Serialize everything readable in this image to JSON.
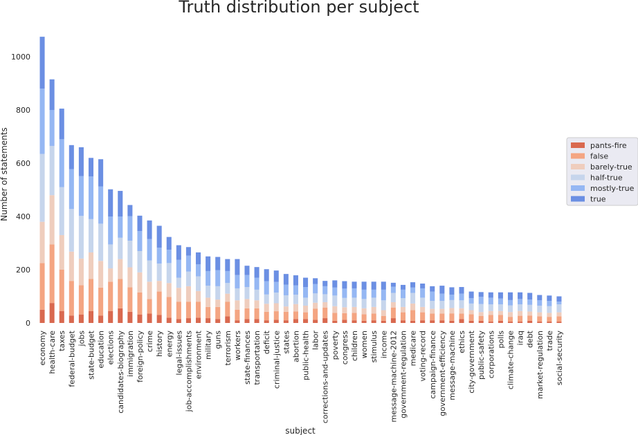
{
  "chart_data": {
    "type": "bar",
    "stacked": true,
    "title": "Truth distribution per subject",
    "xlabel": "subject",
    "ylabel": "Number of statements",
    "ylim": [
      0,
      1100
    ],
    "yticks": [
      0,
      200,
      400,
      600,
      800,
      1000
    ],
    "grid": false,
    "legend_position": "right",
    "categories": [
      "economy",
      "health-care",
      "taxes",
      "federal-budget",
      "jobs",
      "state-budget",
      "education",
      "elections",
      "candidates-biography",
      "immigration",
      "foreign-policy",
      "crime",
      "history",
      "energy",
      "legal-issues",
      "job-accomplishments",
      "environment",
      "military",
      "guns",
      "terrorism",
      "workers",
      "state-finances",
      "transportation",
      "deficit",
      "criminal-justice",
      "states",
      "abortion",
      "public-health",
      "labor",
      "corrections-and-updates",
      "poverty",
      "congress",
      "children",
      "women",
      "stimulus",
      "income",
      "message-machine-2012",
      "government-regulation",
      "medicare",
      "voting-record",
      "campaign-finance",
      "government-efficiency",
      "message-machine",
      "ethics",
      "city-government",
      "public-safety",
      "corporations",
      "polls",
      "climate-change",
      "iraq",
      "debt",
      "market-regulation",
      "trade",
      "social-security"
    ],
    "series": [
      {
        "name": "pants-fire",
        "color": "#d9694f",
        "values": [
          50,
          75,
          45,
          28,
          32,
          45,
          28,
          45,
          55,
          42,
          32,
          35,
          30,
          20,
          15,
          18,
          20,
          18,
          15,
          25,
          10,
          15,
          15,
          10,
          12,
          10,
          15,
          15,
          12,
          18,
          8,
          12,
          10,
          8,
          10,
          8,
          18,
          10,
          8,
          10,
          10,
          10,
          8,
          15,
          8,
          8,
          5,
          8,
          5,
          5,
          8,
          5,
          5,
          5
        ]
      },
      {
        "name": "false",
        "color": "#f4a582",
        "values": [
          175,
          220,
          155,
          130,
          110,
          120,
          105,
          110,
          110,
          92,
          83,
          55,
          88,
          78,
          65,
          62,
          60,
          42,
          45,
          55,
          40,
          40,
          40,
          32,
          32,
          32,
          28,
          25,
          42,
          40,
          30,
          25,
          28,
          25,
          25,
          18,
          40,
          30,
          40,
          30,
          25,
          25,
          28,
          20,
          25,
          18,
          25,
          22,
          18,
          22,
          20,
          20,
          18,
          20
        ]
      },
      {
        "name": "barely-true",
        "color": "#efcdbd",
        "values": [
          155,
          185,
          130,
          110,
          100,
          100,
          100,
          50,
          75,
          75,
          75,
          65,
          40,
          52,
          52,
          58,
          40,
          35,
          28,
          30,
          35,
          35,
          30,
          30,
          30,
          20,
          28,
          25,
          22,
          20,
          25,
          22,
          22,
          22,
          25,
          22,
          20,
          20,
          25,
          20,
          18,
          18,
          20,
          20,
          15,
          15,
          15,
          15,
          18,
          18,
          15,
          15,
          15,
          15
        ]
      },
      {
        "name": "half-true",
        "color": "#c6d5ec",
        "values": [
          255,
          185,
          180,
          160,
          160,
          125,
          140,
          90,
          80,
          100,
          80,
          80,
          65,
          75,
          38,
          55,
          55,
          45,
          50,
          40,
          45,
          45,
          40,
          35,
          40,
          42,
          35,
          30,
          35,
          30,
          40,
          35,
          35,
          35,
          35,
          37,
          35,
          33,
          40,
          35,
          30,
          30,
          30,
          30,
          25,
          30,
          25,
          25,
          25,
          25,
          25,
          25,
          25,
          30
        ]
      },
      {
        "name": "mostly-true",
        "color": "#95b7f3",
        "values": [
          245,
          135,
          180,
          150,
          150,
          160,
          140,
          105,
          80,
          92,
          75,
          80,
          60,
          50,
          67,
          60,
          45,
          55,
          60,
          45,
          50,
          45,
          45,
          50,
          40,
          40,
          35,
          40,
          35,
          30,
          30,
          35,
          35,
          35,
          30,
          40,
          23,
          32,
          20,
          35,
          35,
          27,
          20,
          25,
          20,
          27,
          25,
          22,
          20,
          20,
          20,
          20,
          20,
          10
        ]
      },
      {
        "name": "true",
        "color": "#6b8fe3",
        "values": [
          195,
          115,
          115,
          90,
          108,
          70,
          102,
          102,
          96,
          42,
          58,
          70,
          82,
          48,
          55,
          32,
          45,
          55,
          50,
          45,
          60,
          35,
          40,
          45,
          43,
          40,
          38,
          35,
          22,
          20,
          27,
          28,
          25,
          30,
          30,
          30,
          15,
          18,
          20,
          18,
          20,
          30,
          28,
          25,
          25,
          18,
          20,
          23,
          29,
          25,
          25,
          20,
          20,
          20
        ]
      }
    ]
  }
}
